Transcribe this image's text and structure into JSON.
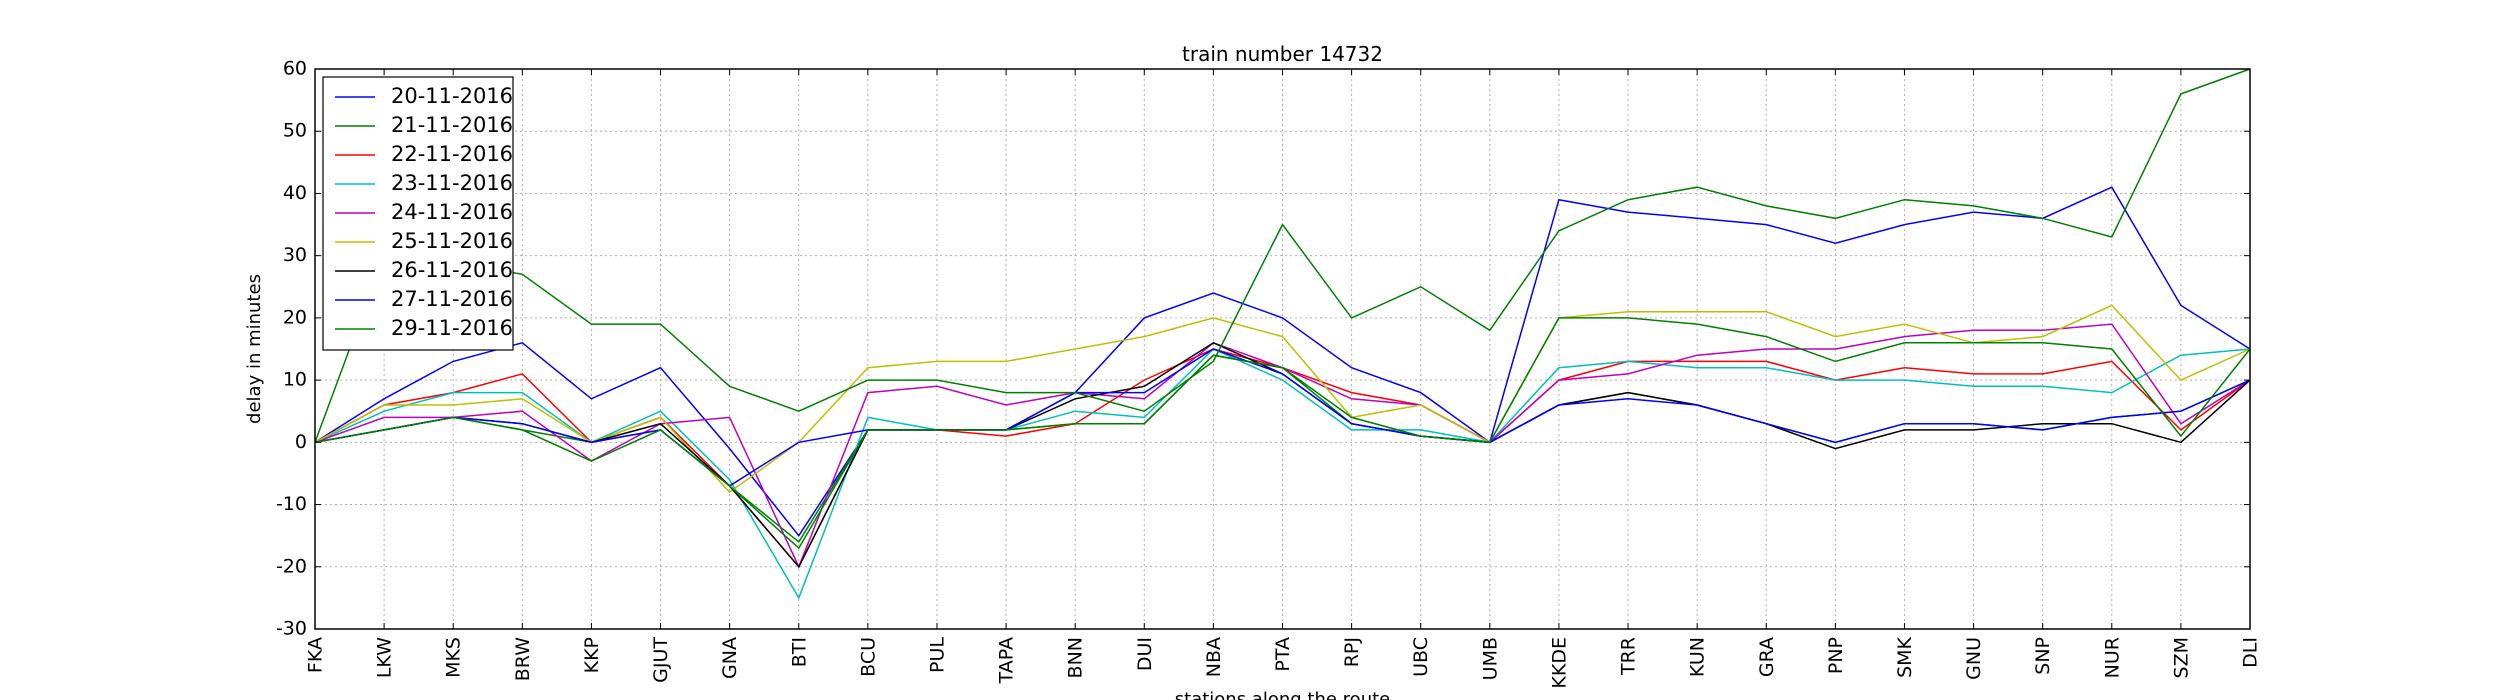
{
  "chart_data": {
    "type": "line",
    "title": "train number 14732",
    "xlabel": "stations along the route",
    "ylabel": "delay in minutes",
    "ylim": [
      -30,
      60
    ],
    "yticks": [
      -30,
      -20,
      -10,
      0,
      10,
      20,
      30,
      40,
      50,
      60
    ],
    "grid": true,
    "legend_position": "top-left",
    "categories": [
      "FKA",
      "LKW",
      "MKS",
      "BRW",
      "KKP",
      "GJUT",
      "GNA",
      "BTI",
      "BCU",
      "PUL",
      "TAPA",
      "BNN",
      "DUI",
      "NBA",
      "PTA",
      "RPJ",
      "UBC",
      "UMB",
      "KKDE",
      "TRR",
      "KUN",
      "GRA",
      "PNP",
      "SMK",
      "GNU",
      "SNP",
      "NUR",
      "SZM",
      "DLI"
    ],
    "series": [
      {
        "name": "20-11-2016",
        "color": "#0000ff",
        "values": [
          0,
          7,
          13,
          16,
          7,
          12,
          -1,
          -15,
          2,
          2,
          2,
          8,
          20,
          24,
          20,
          12,
          8,
          0,
          39,
          37,
          36,
          35,
          32,
          35,
          37,
          36,
          41,
          22,
          15
        ]
      },
      {
        "name": "21-11-2016",
        "color": "#008000",
        "values": [
          0,
          2,
          4,
          2,
          0,
          2,
          -7,
          -16,
          2,
          2,
          2,
          3,
          3,
          14,
          12,
          3,
          1,
          0,
          6,
          8,
          6,
          3,
          0,
          3,
          3,
          2,
          4,
          5,
          10
        ]
      },
      {
        "name": "22-11-2016",
        "color": "#ff0000",
        "values": [
          0,
          6,
          8,
          11,
          0,
          4,
          -7,
          -20,
          2,
          2,
          1,
          3,
          10,
          15,
          12,
          8,
          6,
          0,
          10,
          13,
          13,
          13,
          10,
          12,
          11,
          11,
          13,
          2,
          10
        ]
      },
      {
        "name": "23-11-2016",
        "color": "#00bfbf",
        "values": [
          0,
          5,
          8,
          8,
          0,
          5,
          -6,
          -25,
          4,
          2,
          2,
          5,
          4,
          15,
          10,
          2,
          2,
          0,
          12,
          13,
          12,
          12,
          10,
          10,
          9,
          9,
          8,
          14,
          15
        ]
      },
      {
        "name": "24-11-2016",
        "color": "#bf00bf",
        "values": [
          0,
          4,
          4,
          5,
          -3,
          3,
          4,
          -20,
          8,
          9,
          6,
          8,
          7,
          16,
          12,
          7,
          6,
          0,
          10,
          11,
          14,
          15,
          15,
          17,
          18,
          18,
          19,
          3,
          10
        ]
      },
      {
        "name": "25-11-2016",
        "color": "#bfbf00",
        "values": [
          0,
          6,
          6,
          7,
          0,
          4,
          -8,
          0,
          12,
          13,
          13,
          15,
          17,
          20,
          17,
          4,
          6,
          0,
          20,
          21,
          21,
          21,
          17,
          19,
          16,
          17,
          22,
          10,
          15
        ]
      },
      {
        "name": "26-11-2016",
        "color": "#000000",
        "values": [
          0,
          2,
          4,
          3,
          0,
          3,
          -7,
          -20,
          2,
          2,
          2,
          7,
          9,
          16,
          11,
          3,
          1,
          0,
          6,
          8,
          6,
          3,
          -1,
          2,
          2,
          3,
          3,
          0,
          10
        ]
      },
      {
        "name": "27-11-2016",
        "color": "#0000ff",
        "values": [
          0,
          2,
          4,
          3,
          0,
          2,
          -7,
          0,
          2,
          2,
          2,
          8,
          8,
          15,
          11,
          3,
          1,
          0,
          6,
          7,
          6,
          3,
          0,
          3,
          3,
          2,
          4,
          5,
          10
        ]
      },
      {
        "name": "29-11-2016",
        "color": "#008000",
        "values": [
          0,
          30,
          29,
          27,
          19,
          19,
          9,
          5,
          10,
          10,
          8,
          8,
          5,
          13,
          35,
          20,
          25,
          18,
          34,
          39,
          41,
          38,
          36,
          39,
          38,
          36,
          33,
          56,
          60
        ]
      },
      {
        "name": "",
        "color": "#008000",
        "values": [
          0,
          2,
          4,
          2,
          -3,
          2,
          -7,
          -17,
          2,
          2,
          2,
          3,
          3,
          14,
          12,
          4,
          1,
          0,
          20,
          20,
          19,
          17,
          13,
          16,
          16,
          16,
          15,
          1,
          15
        ]
      }
    ]
  }
}
